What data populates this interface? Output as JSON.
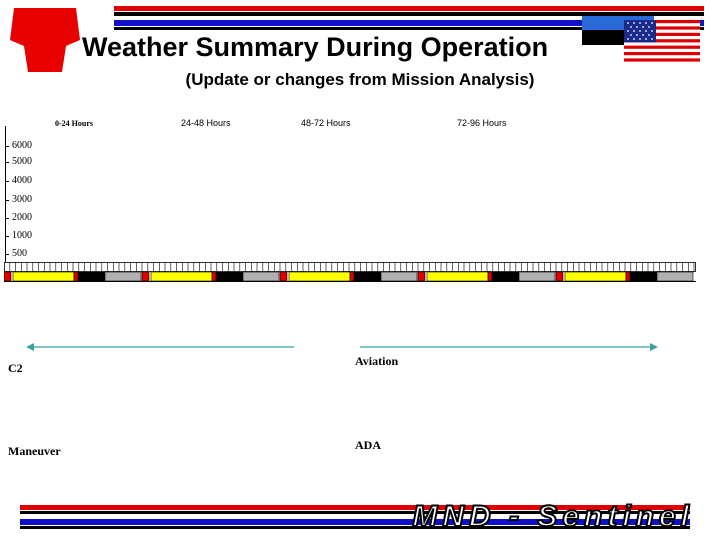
{
  "header": {
    "title": "Weather Summary During Operation",
    "subtitle": "(Update or changes from Mission Analysis)"
  },
  "columns": [
    "0-24 Hours",
    "24-48 Hours",
    "48-72 Hours",
    "72-96 Hours"
  ],
  "altitudes": [
    "6000",
    "5000",
    "4000",
    "3000",
    "2000",
    "1000",
    "500"
  ],
  "sections": {
    "c2": "C2",
    "maneuver": "Maneuver",
    "aviation": "Aviation",
    "ada": "ADA"
  },
  "footer": {
    "brand": "MND - Sentinel"
  },
  "colors": {
    "red": "#e00000",
    "blue": "#1010c8",
    "yellow": "#ffff00",
    "gray": "#b0b0b0",
    "arrow": "#3aa0a0",
    "keystone": "#e60000"
  },
  "icons": [
    "keystone-emblem",
    "us-flag",
    "estonia-flag"
  ]
}
